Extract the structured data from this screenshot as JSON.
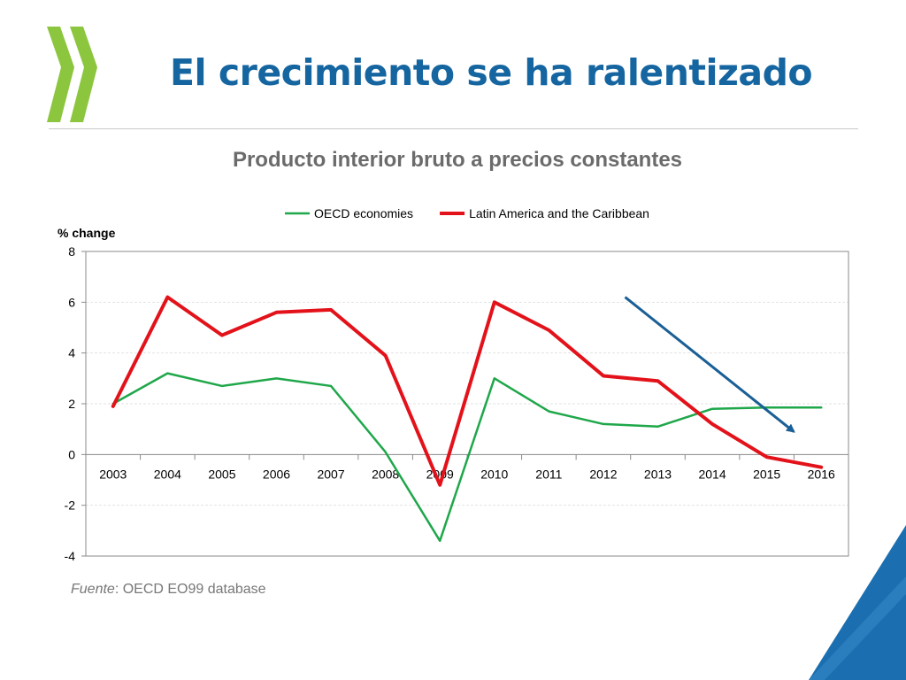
{
  "slide": {
    "title": "El crecimiento se ha ralentizado",
    "subtitle": "Producto interior bruto a precios constantes",
    "source_prefix": "Fuente",
    "source_rest": ": OECD EO99 database"
  },
  "colors": {
    "title": "#1565a0",
    "logo_green": "#8cc63f",
    "corner_blue": "#1b6fb0",
    "oecd_series": "#1fa74a",
    "latam_series": "#e3121a",
    "arrow": "#1a5f95"
  },
  "chart_data": {
    "type": "line",
    "ylabel": "% change",
    "ylim": [
      -4,
      8
    ],
    "yticks": [
      8,
      6,
      4,
      2,
      0,
      -2,
      -4
    ],
    "grid": true,
    "legend_position": "top",
    "categories": [
      "2003",
      "2004",
      "2005",
      "2006",
      "2007",
      "2008",
      "2009",
      "2010",
      "2011",
      "2012",
      "2013",
      "2014",
      "2015",
      "2016"
    ],
    "series": [
      {
        "name": "OECD economies",
        "color": "#1fa74a",
        "values": [
          2.0,
          3.2,
          2.7,
          3.0,
          2.7,
          0.1,
          -3.4,
          3.0,
          1.7,
          1.2,
          1.1,
          1.8,
          1.85,
          1.85
        ]
      },
      {
        "name": "Latin America and the Caribbean",
        "color": "#e3121a",
        "values": [
          1.9,
          6.2,
          4.7,
          5.6,
          5.7,
          3.9,
          -1.2,
          6.0,
          4.9,
          3.1,
          2.9,
          1.2,
          -0.1,
          -0.5
        ]
      }
    ],
    "annotation": {
      "type": "arrow",
      "description": "downward trend arrow",
      "from": {
        "x": "2013",
        "y": 6.2
      },
      "to": {
        "x": "2016",
        "y": 0.9
      }
    }
  }
}
